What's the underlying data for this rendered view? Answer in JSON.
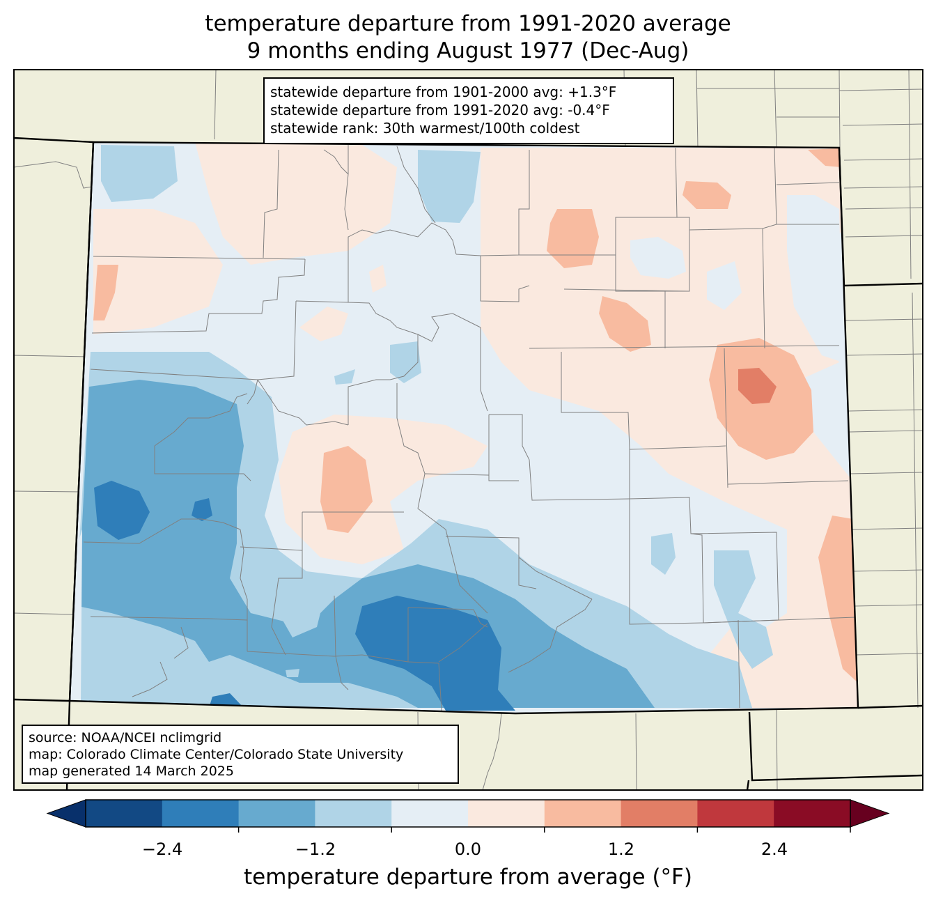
{
  "title": {
    "line1": "temperature departure from 1991-2020 average",
    "line2": "9 months ending August 1977 (Dec-Aug)"
  },
  "stats": {
    "line1": "statewide departure from 1901-2000 avg: +1.3°F",
    "line2": "statewide departure from 1991-2020 avg: -0.4°F",
    "line3": "statewide rank: 30th warmest/100th coldest"
  },
  "source": {
    "line1": "source: NOAA/NCEI nclimgrid",
    "line2": "map: Colorado Climate Center/Colorado State University",
    "line3": "map generated 14 March 2025"
  },
  "colorbar": {
    "label": "temperature departure from average (°F)",
    "ticks": [
      "−2.4",
      "−1.2",
      "0.0",
      "1.2",
      "2.4"
    ],
    "bins": [
      {
        "range": "below -3.0",
        "color": "#08306b"
      },
      {
        "range": "-3.0 to -2.4",
        "color": "#124984"
      },
      {
        "range": "-2.4 to -1.8",
        "color": "#2f7eb9"
      },
      {
        "range": "-1.8 to -1.2",
        "color": "#67aacf"
      },
      {
        "range": "-1.2 to -0.6",
        "color": "#b0d4e7"
      },
      {
        "range": "-0.6 to 0.0",
        "color": "#e5eef5"
      },
      {
        "range": "0.0 to 0.6",
        "color": "#fae9df"
      },
      {
        "range": "0.6 to 1.2",
        "color": "#f8bba0"
      },
      {
        "range": "1.2 to 1.8",
        "color": "#e27e66"
      },
      {
        "range": "1.8 to 2.4",
        "color": "#c0383d"
      },
      {
        "range": "2.4 to 3.0",
        "color": "#8a0c25"
      },
      {
        "range": "above 3.0",
        "color": "#67001f"
      }
    ]
  },
  "colors": {
    "land_outside": "#efefdc",
    "county_lines": "#808080",
    "state_lines": "#000000"
  }
}
